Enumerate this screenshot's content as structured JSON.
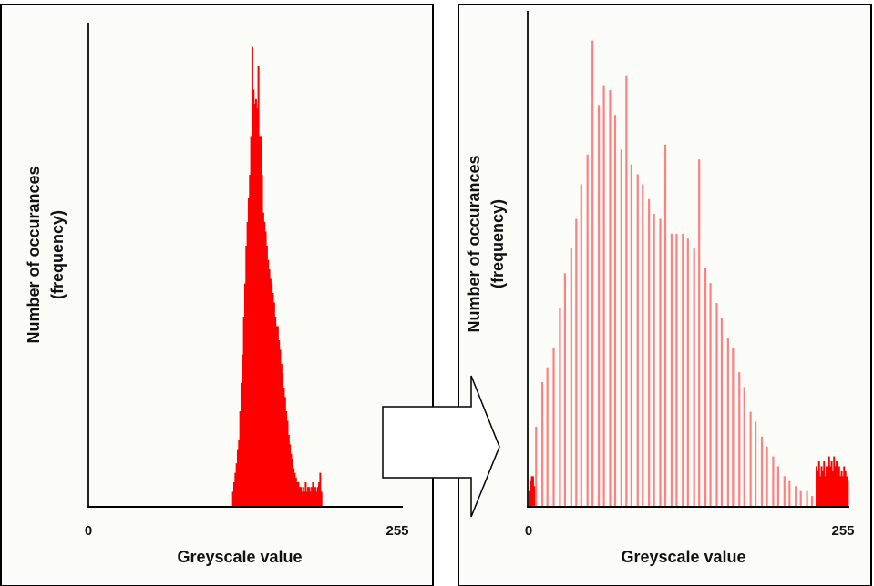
{
  "colors": {
    "page_background": "#ffffff",
    "panel_background": "#fbfbf7",
    "panel_border": "#000000",
    "axis": "#000000",
    "bar": "#ff0000",
    "bar_light": "#ff8080",
    "arrow_fill": "#ffffff",
    "arrow_stroke": "#000000"
  },
  "arrow": {
    "direction": "right",
    "icon": "right-arrow-icon"
  },
  "chart_data": [
    {
      "type": "bar",
      "title": "",
      "xlabel": "Greyscale value",
      "ylabel_lines": [
        "Number of occurances",
        "(frequency)"
      ],
      "x_ticks": [
        "0",
        "255"
      ],
      "xlim": [
        0,
        255
      ],
      "ylim": [
        0,
        100
      ],
      "y_tick_labels": "none",
      "grid": false,
      "legend": "none",
      "series": [
        {
          "style": "dense",
          "points": [
            [
              118,
              3
            ],
            [
              119,
              5
            ],
            [
              120,
              7
            ],
            [
              121,
              9
            ],
            [
              122,
              12
            ],
            [
              123,
              14
            ],
            [
              124,
              20
            ],
            [
              125,
              26
            ],
            [
              126,
              32
            ],
            [
              127,
              40
            ],
            [
              128,
              47
            ],
            [
              129,
              55
            ],
            [
              130,
              60
            ],
            [
              131,
              65
            ],
            [
              132,
              70
            ],
            [
              133,
              78
            ],
            [
              134,
              97
            ],
            [
              135,
              88
            ],
            [
              136,
              85
            ],
            [
              137,
              86
            ],
            [
              138,
              84
            ],
            [
              139,
              93
            ],
            [
              140,
              78
            ],
            [
              141,
              78
            ],
            [
              142,
              70
            ],
            [
              143,
              62
            ],
            [
              144,
              60
            ],
            [
              145,
              58
            ],
            [
              146,
              55
            ],
            [
              147,
              52
            ],
            [
              148,
              50
            ],
            [
              149,
              48
            ],
            [
              150,
              47
            ],
            [
              151,
              45
            ],
            [
              152,
              43
            ],
            [
              153,
              40
            ],
            [
              154,
              38
            ],
            [
              155,
              38
            ],
            [
              156,
              35
            ],
            [
              157,
              33
            ],
            [
              158,
              30
            ],
            [
              159,
              28
            ],
            [
              160,
              25
            ],
            [
              161,
              23
            ],
            [
              162,
              20
            ],
            [
              163,
              18
            ],
            [
              164,
              15
            ],
            [
              165,
              13
            ],
            [
              166,
              11
            ],
            [
              167,
              10
            ],
            [
              168,
              8
            ],
            [
              169,
              7
            ],
            [
              170,
              6
            ],
            [
              171,
              5
            ],
            [
              172,
              5
            ],
            [
              173,
              4
            ],
            [
              174,
              4
            ],
            [
              175,
              3
            ],
            [
              176,
              4
            ],
            [
              177,
              3
            ],
            [
              178,
              5
            ],
            [
              179,
              3
            ],
            [
              180,
              4
            ],
            [
              181,
              4
            ],
            [
              182,
              3
            ],
            [
              183,
              4
            ],
            [
              184,
              5
            ],
            [
              185,
              3
            ],
            [
              186,
              4
            ],
            [
              187,
              3
            ],
            [
              188,
              4
            ],
            [
              189,
              5
            ],
            [
              190,
              7
            ],
            [
              191,
              3
            ]
          ]
        }
      ]
    },
    {
      "type": "bar",
      "title": "",
      "xlabel": "Greyscale value",
      "ylabel_lines": [
        "Number of occurances",
        "(frequency)"
      ],
      "x_ticks": [
        "0",
        "255"
      ],
      "xlim": [
        0,
        255
      ],
      "ylim": [
        0,
        100
      ],
      "y_tick_labels": "none",
      "grid": false,
      "legend": "none",
      "series": [
        {
          "style": "dense",
          "points": [
            [
              0,
              3
            ],
            [
              1,
              5
            ],
            [
              2,
              6
            ],
            [
              3,
              6
            ],
            [
              4,
              4
            ],
            [
              229,
              8
            ],
            [
              230,
              7
            ],
            [
              231,
              9
            ],
            [
              232,
              6
            ],
            [
              233,
              8
            ],
            [
              234,
              7
            ],
            [
              235,
              9
            ],
            [
              236,
              6
            ],
            [
              237,
              8
            ],
            [
              238,
              7
            ],
            [
              239,
              10
            ],
            [
              240,
              8
            ],
            [
              241,
              9
            ],
            [
              242,
              7
            ],
            [
              243,
              10
            ],
            [
              244,
              8
            ],
            [
              245,
              9
            ],
            [
              246,
              7
            ],
            [
              247,
              8
            ],
            [
              248,
              6
            ],
            [
              249,
              7
            ],
            [
              250,
              6
            ],
            [
              251,
              8
            ],
            [
              252,
              7
            ],
            [
              253,
              6
            ],
            [
              254,
              5
            ]
          ]
        },
        {
          "style": "spikes",
          "points": [
            [
              6,
              16
            ],
            [
              11,
              25
            ],
            [
              15,
              28
            ],
            [
              20,
              32
            ],
            [
              25,
              40
            ],
            [
              29,
              47
            ],
            [
              34,
              52
            ],
            [
              38,
              58
            ],
            [
              42,
              65
            ],
            [
              47,
              71
            ],
            [
              51,
              94
            ],
            [
              56,
              81
            ],
            [
              60,
              85
            ],
            [
              65,
              84
            ],
            [
              69,
              79
            ],
            [
              74,
              72
            ],
            [
              78,
              87
            ],
            [
              82,
              69
            ],
            [
              87,
              67
            ],
            [
              91,
              65
            ],
            [
              96,
              62
            ],
            [
              100,
              59
            ],
            [
              105,
              58
            ],
            [
              109,
              73
            ],
            [
              114,
              55
            ],
            [
              118,
              55
            ],
            [
              123,
              55
            ],
            [
              127,
              54
            ],
            [
              132,
              52
            ],
            [
              136,
              70
            ],
            [
              141,
              48
            ],
            [
              145,
              45
            ],
            [
              150,
              41
            ],
            [
              154,
              38
            ],
            [
              159,
              34
            ],
            [
              163,
              32
            ],
            [
              168,
              27
            ],
            [
              172,
              24
            ],
            [
              177,
              19
            ],
            [
              181,
              17
            ],
            [
              186,
              14
            ],
            [
              190,
              12
            ],
            [
              195,
              10
            ],
            [
              199,
              8
            ],
            [
              204,
              6
            ],
            [
              208,
              5
            ],
            [
              213,
              4
            ],
            [
              217,
              3
            ],
            [
              222,
              3
            ],
            [
              226,
              2
            ]
          ]
        }
      ]
    }
  ]
}
